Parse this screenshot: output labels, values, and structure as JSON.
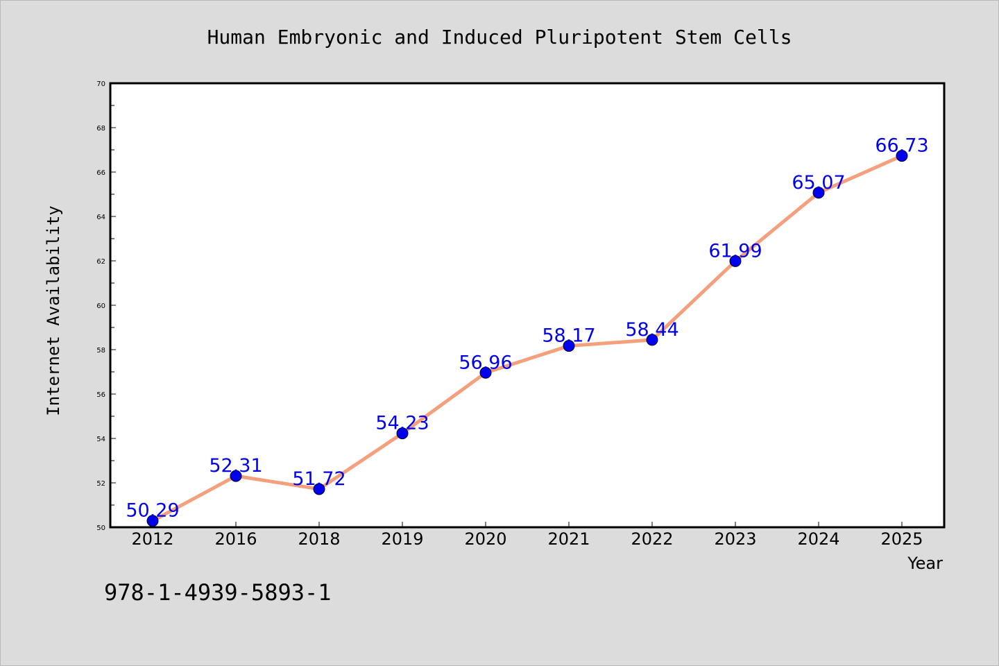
{
  "chart_data": {
    "type": "line",
    "title": "Human Embryonic and Induced Pluripotent Stem Cells",
    "xlabel": "Year",
    "ylabel": "Internet Availability",
    "categories": [
      "2012",
      "2016",
      "2018",
      "2019",
      "2020",
      "2021",
      "2022",
      "2023",
      "2024",
      "2025"
    ],
    "values": [
      50.29,
      52.31,
      51.72,
      54.23,
      56.96,
      58.17,
      58.44,
      61.99,
      65.07,
      66.73
    ],
    "data_labels": [
      "50.29",
      "52.31",
      "51.72",
      "54.23",
      "56.96",
      "58.17",
      "58.44",
      "61.99",
      "65.07",
      "66.73"
    ],
    "ylim": [
      50,
      70
    ],
    "yticks": [
      "50",
      "52",
      "54",
      "56",
      "58",
      "60",
      "62",
      "64",
      "66",
      "68",
      "70"
    ],
    "grid": false,
    "line_color": "#f4a07c",
    "marker_color": "#0000ee",
    "label_color": "#0000ee"
  },
  "footer": {
    "isbn": "978-1-4939-5893-1"
  }
}
